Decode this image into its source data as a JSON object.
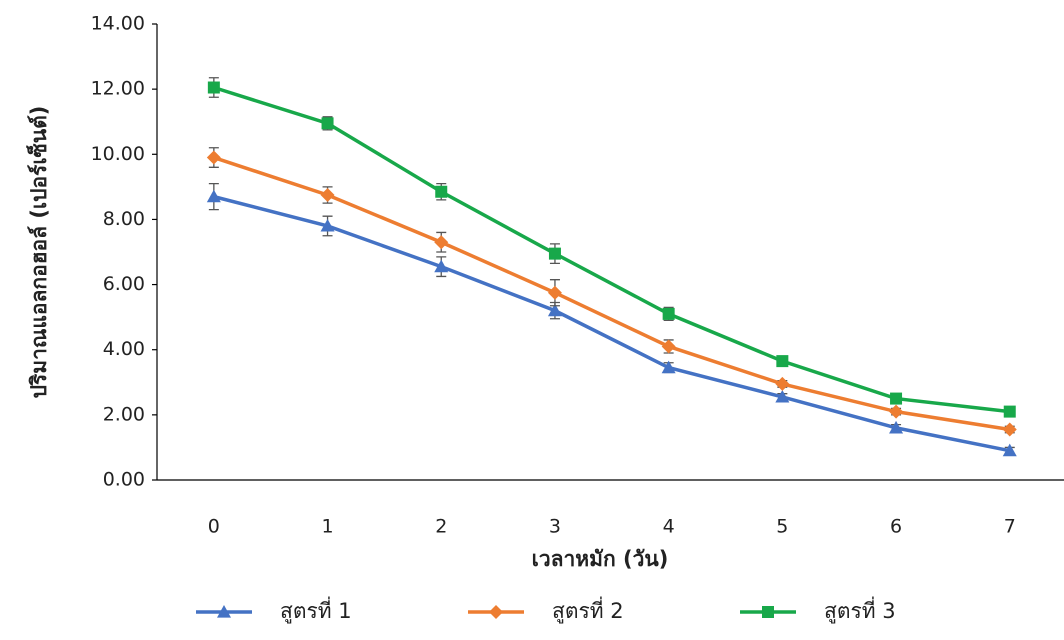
{
  "chart_data": {
    "type": "line",
    "x_label": "เวลาหมัก (วัน)",
    "y_label": "ปริมาณแอลกอฮอล์ (เปอร์เซ็นต์)",
    "categories": [
      "0",
      "1",
      "2",
      "3",
      "4",
      "5",
      "6",
      "7"
    ],
    "ylim": [
      0,
      14
    ],
    "yticks": [
      {
        "value": 0,
        "label": "0.00"
      },
      {
        "value": 2,
        "label": "2.00"
      },
      {
        "value": 4,
        "label": "4.00"
      },
      {
        "value": 6,
        "label": "6.00"
      },
      {
        "value": 8,
        "label": "8.00"
      },
      {
        "value": 10,
        "label": "10.00"
      },
      {
        "value": 12,
        "label": "12.00"
      },
      {
        "value": 14,
        "label": "14.00"
      }
    ],
    "series": [
      {
        "name": "สูตรที่ 1",
        "color": "#4472c4",
        "marker": "triangle",
        "values": [
          8.7,
          7.8,
          6.55,
          5.2,
          3.45,
          2.55,
          1.6,
          0.9
        ],
        "errors": [
          0.4,
          0.3,
          0.3,
          0.25,
          0.15,
          0.1,
          0.1,
          0.1
        ]
      },
      {
        "name": "สูตรที่ 2",
        "color": "#ed7d31",
        "marker": "diamond",
        "values": [
          9.9,
          8.75,
          7.3,
          5.75,
          4.1,
          2.95,
          2.1,
          1.55
        ],
        "errors": [
          0.3,
          0.25,
          0.3,
          0.4,
          0.2,
          0.1,
          0.1,
          0.1
        ]
      },
      {
        "name": "สูตรที่ 3",
        "color": "#18a84a",
        "marker": "square",
        "values": [
          12.05,
          10.95,
          8.85,
          6.95,
          5.1,
          3.65,
          2.5,
          2.1
        ],
        "errors": [
          0.3,
          0.2,
          0.25,
          0.3,
          0.2,
          0.1,
          0.1,
          0.1
        ]
      }
    ]
  }
}
